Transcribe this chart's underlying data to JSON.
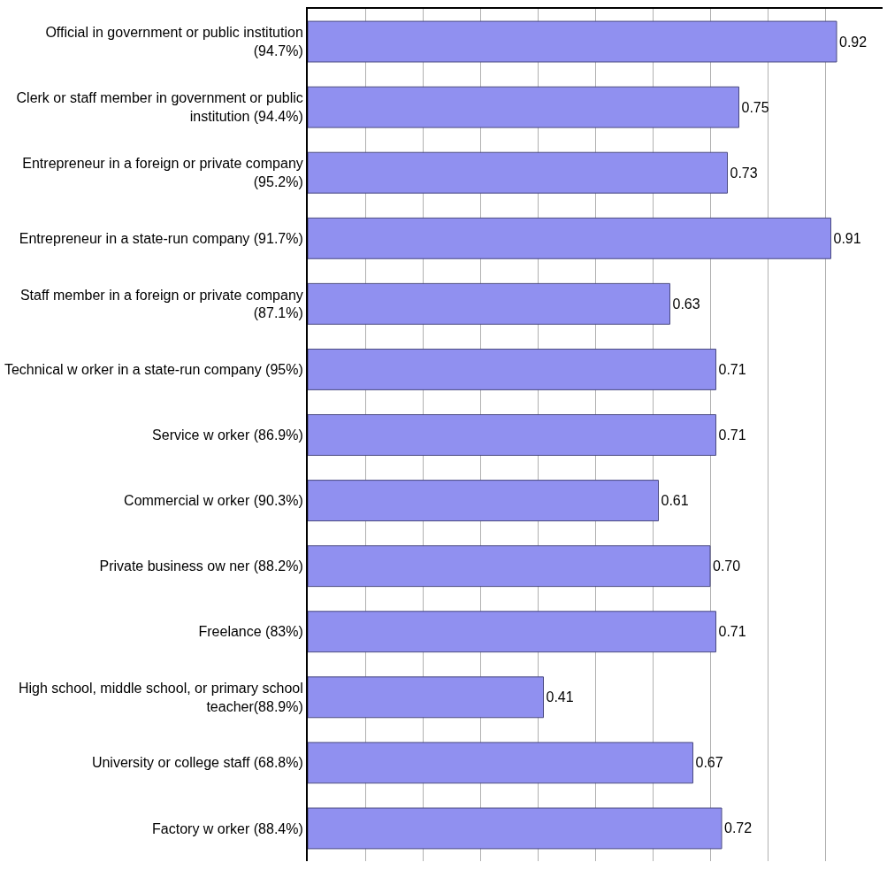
{
  "chart_data": {
    "type": "bar",
    "orientation": "horizontal",
    "categories": [
      "Official in government or public institution (94.7%)",
      "Clerk or staff member in government or public institution (94.4%)",
      "Entrepreneur in a foreign or private company (95.2%)",
      "Entrepreneur in a state-run company (91.7%)",
      "Staff member in a foreign or private company (87.1%)",
      "Technical w orker in a state-run company (95%)",
      "Service w orker (86.9%)",
      "Commercial w orker (90.3%)",
      "Private business ow ner (88.2%)",
      "Freelance (83%)",
      "High school, middle school, or primary school teacher(88.9%)",
      "University or college staff (68.8%)",
      "Factory w orker (88.4%)"
    ],
    "values": [
      0.92,
      0.75,
      0.73,
      0.91,
      0.63,
      0.71,
      0.71,
      0.61,
      0.7,
      0.71,
      0.41,
      0.67,
      0.72
    ],
    "value_labels": [
      "0.92",
      "0.75",
      "0.73",
      "0.91",
      "0.63",
      "0.71",
      "0.71",
      "0.61",
      "0.70",
      "0.71",
      "0.41",
      "0.67",
      "0.72"
    ],
    "color": "#9090f0",
    "xlim": [
      0,
      1
    ],
    "xticks": [
      {
        "value": 0,
        "label": null
      },
      {
        "value": 0.1,
        "label": null
      },
      {
        "value": 0.2,
        "label": null
      },
      {
        "value": 0.3,
        "label": null
      },
      {
        "value": 0.4,
        "label": null
      },
      {
        "value": 0.5,
        "label": null
      },
      {
        "value": 0.6,
        "label": null
      },
      {
        "value": 0.7,
        "label": null
      },
      {
        "value": 0.8,
        "label": null
      },
      {
        "value": 0.9,
        "label": null
      }
    ],
    "grid": "x",
    "tick_labels": "y"
  }
}
